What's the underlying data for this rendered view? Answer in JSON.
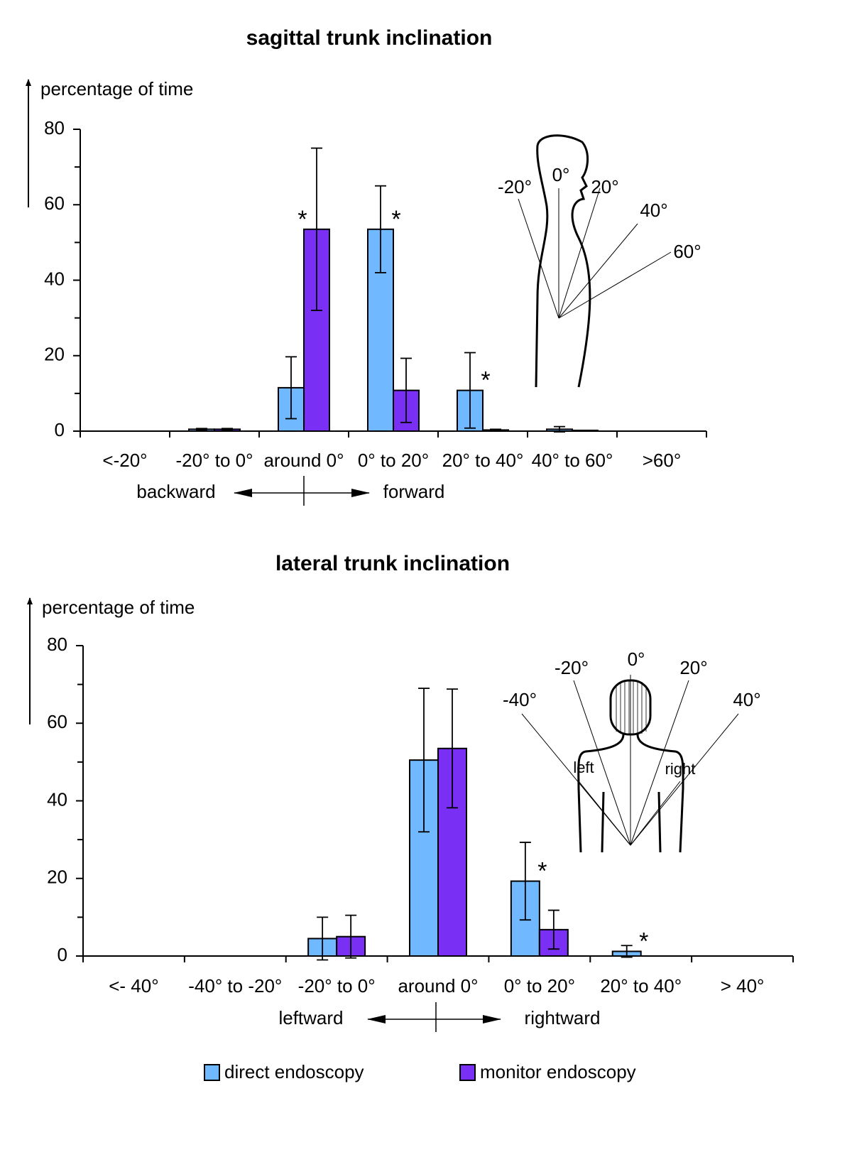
{
  "chart_data": [
    {
      "type": "bar",
      "title": "sagittal trunk inclination",
      "ylabel": "percentage of time",
      "categories": [
        "<-20°",
        "-20° to 0°",
        "around 0°",
        "0° to 20°",
        "20° to 40°",
        "40° to 60°",
        ">60°"
      ],
      "series": [
        {
          "color": "#70b8ff",
          "values": [
            0,
            0.5,
            11.5,
            53.5,
            10.8,
            0.5,
            0
          ],
          "errors": [
            null,
            0.2,
            8.2,
            11.5,
            10,
            0.7,
            null
          ]
        },
        {
          "color": "#7a2ff5",
          "values": [
            0,
            0.5,
            53.5,
            10.8,
            0.3,
            0.2,
            0
          ],
          "errors": [
            null,
            0.2,
            21.5,
            8.5,
            0.2,
            null,
            null
          ]
        }
      ],
      "ylim": [
        0,
        80
      ],
      "yticks": [
        0,
        20,
        40,
        60,
        80
      ],
      "minor_yticks": [
        10,
        30,
        50,
        70
      ],
      "significance": [
        {
          "label": "*",
          "series": 1,
          "index": 2
        },
        {
          "label": "*",
          "series": 0,
          "index": 3
        },
        {
          "label": "*",
          "series": 0,
          "index": 4
        }
      ],
      "direction": {
        "left": "backward",
        "right": "forward"
      },
      "inset_labels": [
        "-20°",
        "0°",
        "20°",
        "40°",
        "60°"
      ]
    },
    {
      "type": "bar",
      "title": "lateral trunk inclination",
      "ylabel": "percentage of time",
      "categories": [
        "<- 40°",
        "-40° to -20°",
        "-20° to 0°",
        "around 0°",
        "0° to 20°",
        "20° to 40°",
        "> 40°"
      ],
      "series": [
        {
          "name": "direct endoscopy",
          "color": "#70b8ff",
          "values": [
            0,
            0,
            4.5,
            50.5,
            19.3,
            1.2,
            0
          ],
          "errors": [
            null,
            null,
            5.5,
            18.5,
            10,
            1.5,
            null
          ]
        },
        {
          "name": "monitor endoscopy",
          "color": "#7a2ff5",
          "values": [
            0,
            0,
            5,
            53.5,
            6.8,
            0,
            0
          ],
          "errors": [
            null,
            null,
            5.5,
            15.3,
            5,
            null,
            null
          ]
        }
      ],
      "ylim": [
        0,
        80
      ],
      "yticks": [
        0,
        20,
        40,
        60,
        80
      ],
      "minor_yticks": [
        10,
        30,
        50,
        70
      ],
      "significance": [
        {
          "label": "*",
          "series": 0,
          "index": 4
        },
        {
          "label": "*",
          "series": 0,
          "index": 5
        }
      ],
      "direction": {
        "left": "leftward",
        "right": "rightward"
      },
      "inset_labels": [
        "-40°",
        "-20°",
        "0°",
        "20°",
        "40°",
        "left",
        "right"
      ]
    }
  ]
}
